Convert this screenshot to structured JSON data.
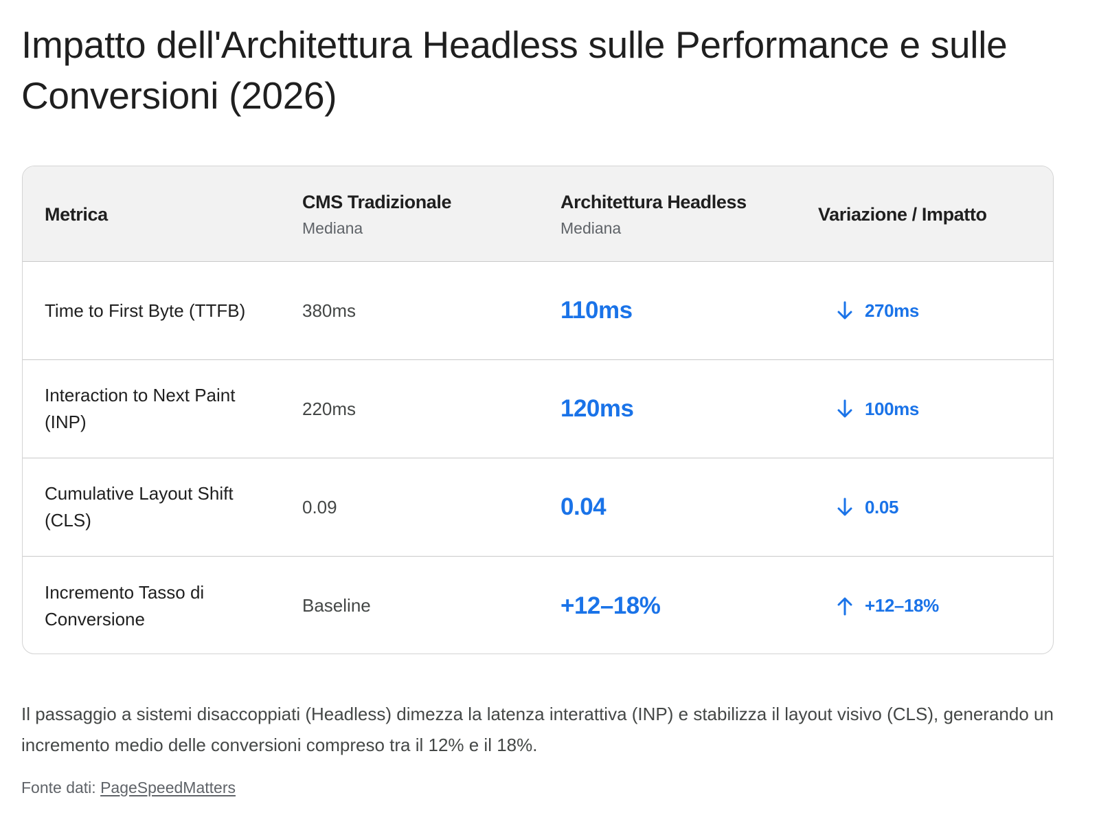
{
  "title": "Impatto dell'Architettura Headless sulle Performance e sulle Conversioni (2026)",
  "table": {
    "columns": [
      {
        "label": "Metrica",
        "sub": ""
      },
      {
        "label": "CMS Tradizionale",
        "sub": "Mediana"
      },
      {
        "label": "Architettura Headless",
        "sub": "Mediana"
      },
      {
        "label": "Variazione / Impatto",
        "sub": ""
      }
    ],
    "rows": [
      {
        "metric": "Time to First Byte (TTFB)",
        "traditional": "380ms",
        "headless": "110ms",
        "direction": "down",
        "direction_icon": "arrow-down-icon",
        "change": "270ms"
      },
      {
        "metric": "Interaction to Next Paint (INP)",
        "traditional": "220ms",
        "headless": "120ms",
        "direction": "down",
        "direction_icon": "arrow-down-icon",
        "change": "100ms"
      },
      {
        "metric": "Cumulative Layout Shift (CLS)",
        "traditional": "0.09",
        "headless": "0.04",
        "direction": "down",
        "direction_icon": "arrow-down-icon",
        "change": "0.05"
      },
      {
        "metric": "Incremento Tasso di Conversione",
        "traditional": "Baseline",
        "headless": "+12–18%",
        "direction": "up",
        "direction_icon": "arrow-up-icon",
        "change": "+12–18%"
      }
    ]
  },
  "summary": "Il passaggio a sistemi disaccoppiati (Headless) dimezza la latenza interattiva (INP) e stabilizza il layout visivo (CLS), generando un incremento medio delle conversioni compreso tra il 12% e il 18%.",
  "source": {
    "prefix": "Fonte dati:",
    "link_text": "PageSpeedMatters"
  },
  "colors": {
    "accent": "#1a73e8",
    "header_bg": "#f2f2f2",
    "border": "#c9c9c9",
    "muted_text": "#444746"
  }
}
